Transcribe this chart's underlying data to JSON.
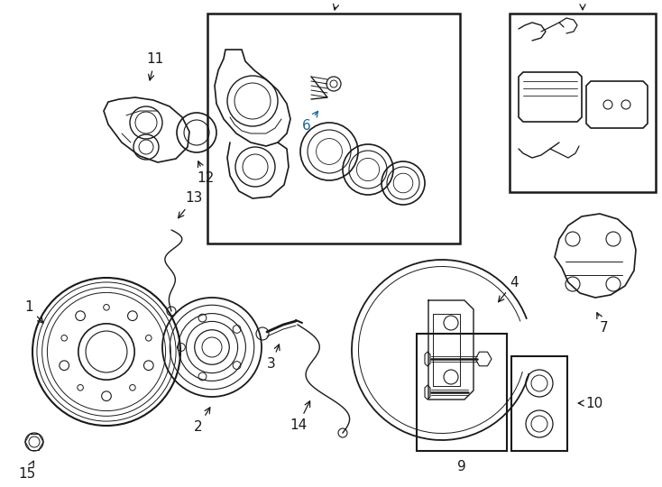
{
  "background_color": "#ffffff",
  "fig_width": 7.34,
  "fig_height": 5.4,
  "dpi": 100,
  "line_color": "#1a1a1a",
  "label_color_6": "#1a6496"
}
